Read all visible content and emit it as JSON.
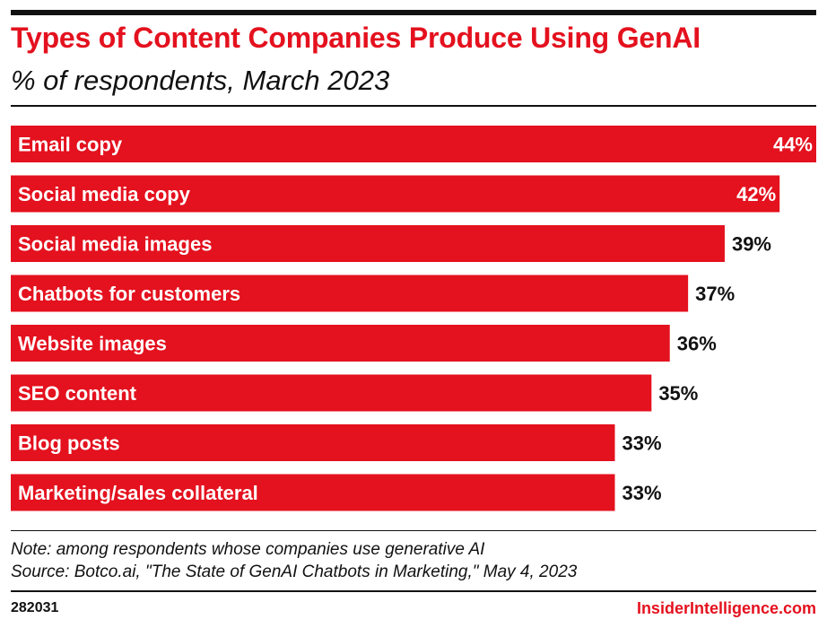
{
  "brand": {
    "chart_id": "282031",
    "name": "InsiderIntelligence.com",
    "accent_color": "#e4111e"
  },
  "notes": {
    "note": "Note: among respondents whose companies use generative AI",
    "source": "Source: Botco.ai, \"The State of GenAI Chatbots in Marketing,\" May 4, 2023"
  },
  "chart_data": {
    "type": "bar",
    "orientation": "horizontal",
    "title": "Types of Content Companies Produce Using GenAI",
    "subtitle": "% of respondents, March 2023",
    "categories": [
      "Email copy",
      "Social media copy",
      "Social media images",
      "Chatbots for customers",
      "Website images",
      "SEO content",
      "Blog posts",
      "Marketing/sales collateral"
    ],
    "values": [
      44,
      42,
      39,
      37,
      36,
      35,
      33,
      33
    ],
    "value_labels": [
      "44%",
      "42%",
      "39%",
      "37%",
      "36%",
      "35%",
      "33%",
      "33%"
    ],
    "xlim": [
      0,
      44
    ],
    "bar_color": "#e4111e",
    "grid": false,
    "legend": "none"
  }
}
